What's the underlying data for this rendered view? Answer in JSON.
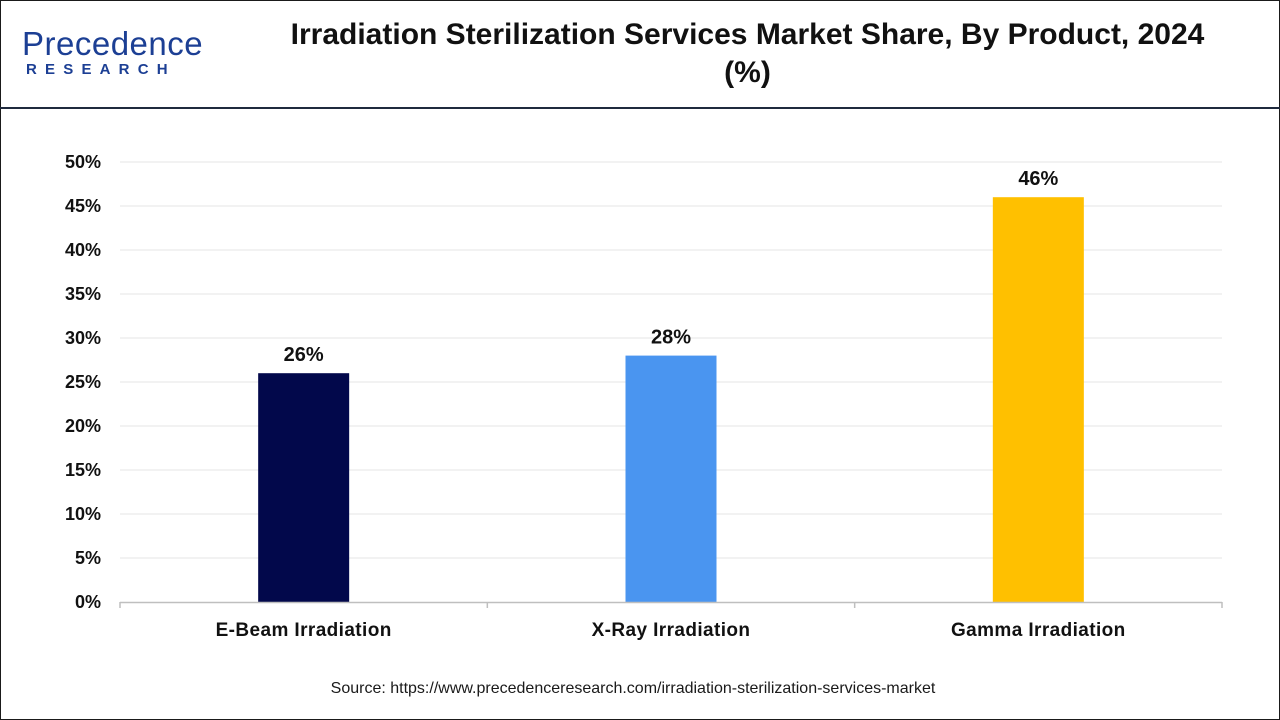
{
  "header": {
    "logo_main": "Precedence",
    "logo_sub": "RESEARCH",
    "title": "Irradiation Sterilization Services Market Share, By Product, 2024 (%)"
  },
  "chart_data": {
    "type": "bar",
    "title": "Irradiation Sterilization Services Market Share, By Product, 2024 (%)",
    "categories": [
      "E-Beam Irradiation",
      "X-Ray Irradiation",
      "Gamma Irradiation"
    ],
    "values": [
      26,
      28,
      46
    ],
    "data_labels": [
      "26%",
      "28%",
      "46%"
    ],
    "colors": [
      "#02084b",
      "#4a95f0",
      "#ffc000"
    ],
    "ylim": [
      0,
      50
    ],
    "yticks": [
      0,
      5,
      10,
      15,
      20,
      25,
      30,
      35,
      40,
      45,
      50
    ],
    "ytick_labels": [
      "0%",
      "5%",
      "10%",
      "15%",
      "20%",
      "25%",
      "30%",
      "35%",
      "40%",
      "45%",
      "50%"
    ],
    "xlabel": "",
    "ylabel": "",
    "grid": true,
    "legend": "none"
  },
  "footer": {
    "source": "Source: https://www.precedenceresearch.com/irradiation-sterilization-services-market"
  }
}
